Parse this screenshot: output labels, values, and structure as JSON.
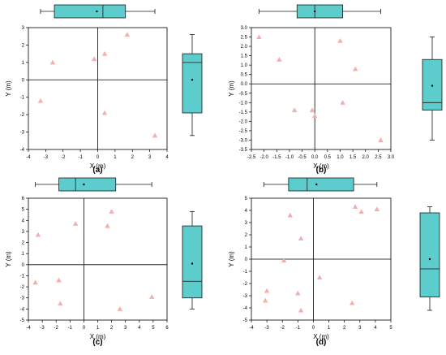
{
  "chart_data": [
    {
      "type": "scatter",
      "panel_label": "(a)",
      "xlabel": "X (m)",
      "ylabel": "Y (m)",
      "xlim": [
        -4,
        4
      ],
      "ylim": [
        -4,
        3
      ],
      "xticks": [
        "-4",
        "-3",
        "-2",
        "-1",
        "0",
        "1",
        "2",
        "3",
        "4"
      ],
      "yticks": [
        "-4",
        "-3",
        "-2",
        "-1",
        "0",
        "1",
        "2",
        "3"
      ],
      "points": [
        [
          -3.3,
          -1.2
        ],
        [
          -2.6,
          1.0
        ],
        [
          -0.2,
          1.2
        ],
        [
          0.4,
          1.5
        ],
        [
          1.7,
          2.6
        ],
        [
          0.4,
          -1.9
        ],
        [
          3.3,
          -3.2
        ]
      ],
      "x_boxplot": {
        "min": -3.3,
        "q1": -2.5,
        "median": 0.3,
        "q3": 1.6,
        "max": 3.3,
        "mean": -0.05
      },
      "y_boxplot": {
        "min": -3.2,
        "q1": -1.9,
        "median": 1.0,
        "q3": 1.5,
        "max": 2.6,
        "mean": 0.0
      }
    },
    {
      "type": "scatter",
      "panel_label": "(b)",
      "xlabel": "X (m)",
      "ylabel": "Y (m)",
      "xlim": [
        -2.5,
        3.0
      ],
      "ylim": [
        -3.5,
        3.0
      ],
      "xticks": [
        "-2.5",
        "-2.0",
        "-1.5",
        "-1.0",
        "-0.5",
        "0.0",
        "0.5",
        "1.0",
        "1.5",
        "2.0",
        "2.5",
        "3.0"
      ],
      "yticks": [
        "-3.5",
        "-3.0",
        "-2.5",
        "-2.0",
        "-1.5",
        "-1.0",
        "-0.5",
        "0.0",
        "0.5",
        "1.0",
        "1.5",
        "2.0",
        "2.5",
        "3.0"
      ],
      "points": [
        [
          -2.2,
          2.5
        ],
        [
          -1.4,
          1.3
        ],
        [
          -0.8,
          -1.4
        ],
        [
          -0.1,
          -1.4
        ],
        [
          0.0,
          -1.7
        ],
        [
          1.0,
          2.3
        ],
        [
          1.1,
          -1.0
        ],
        [
          1.6,
          0.8
        ],
        [
          2.6,
          -3.0
        ]
      ],
      "x_boxplot": {
        "min": -2.2,
        "q1": -0.7,
        "median": 0.0,
        "q3": 1.1,
        "max": 2.6,
        "mean": 0.0
      },
      "y_boxplot": {
        "min": -3.0,
        "q1": -1.4,
        "median": -1.0,
        "q3": 1.3,
        "max": 2.5,
        "mean": -0.1
      }
    },
    {
      "type": "scatter",
      "panel_label": "(c)",
      "xlabel": "X (m)",
      "ylabel": "Y (m)",
      "xlim": [
        -4,
        6
      ],
      "ylim": [
        -5,
        6
      ],
      "xticks": [
        "-4",
        "-3",
        "-2",
        "-1",
        "0",
        "1",
        "2",
        "3",
        "4",
        "5",
        "6"
      ],
      "yticks": [
        "-5",
        "-4",
        "-3",
        "-2",
        "-1",
        "0",
        "1",
        "2",
        "3",
        "4",
        "5",
        "6"
      ],
      "points": [
        [
          -3.3,
          2.7
        ],
        [
          -3.5,
          -1.6
        ],
        [
          -1.8,
          -1.4
        ],
        [
          -1.7,
          -3.5
        ],
        [
          -0.6,
          3.7
        ],
        [
          1.7,
          3.5
        ],
        [
          2.0,
          4.8
        ],
        [
          2.6,
          -4.0
        ],
        [
          4.9,
          -2.9
        ]
      ],
      "x_boxplot": {
        "min": -3.5,
        "q1": -1.8,
        "median": -0.6,
        "q3": 2.3,
        "max": 4.9,
        "mean": 0.0
      },
      "y_boxplot": {
        "min": -4.0,
        "q1": -3.0,
        "median": -1.5,
        "q3": 3.5,
        "max": 4.8,
        "mean": 0.1
      }
    },
    {
      "type": "scatter",
      "panel_label": "(d)",
      "xlabel": "X (m)",
      "ylabel": "Y (m)",
      "xlim": [
        -4,
        5
      ],
      "ylim": [
        -5,
        5
      ],
      "xticks": [
        "-4",
        "-3",
        "-2",
        "-1",
        "0",
        "1",
        "2",
        "3",
        "4",
        "5"
      ],
      "yticks": [
        "-5",
        "-4",
        "-3",
        "-2",
        "-1",
        "0",
        "1",
        "2",
        "3",
        "4",
        "5"
      ],
      "points": [
        [
          -3.0,
          -2.6
        ],
        [
          -3.1,
          -3.4
        ],
        [
          -1.9,
          -0.1
        ],
        [
          -1.5,
          3.6
        ],
        [
          -1.0,
          -2.8
        ],
        [
          -0.8,
          1.7
        ],
        [
          -0.8,
          -4.2
        ],
        [
          0.4,
          -1.5
        ],
        [
          2.5,
          -3.6
        ],
        [
          2.7,
          4.3
        ],
        [
          3.1,
          3.9
        ],
        [
          4.1,
          4.1
        ]
      ],
      "x_boxplot": {
        "min": -3.2,
        "q1": -1.6,
        "median": -0.4,
        "q3": 2.6,
        "max": 4.1,
        "mean": 0.2
      },
      "y_boxplot": {
        "min": -4.2,
        "q1": -3.1,
        "median": -0.8,
        "q3": 3.8,
        "max": 4.3,
        "mean": 0.0
      }
    }
  ],
  "style": {
    "marker_color": "#f4aeae",
    "box_fill": "#5ccccc",
    "box_stroke": "#1a1a1a",
    "axis_color": "#000000"
  }
}
